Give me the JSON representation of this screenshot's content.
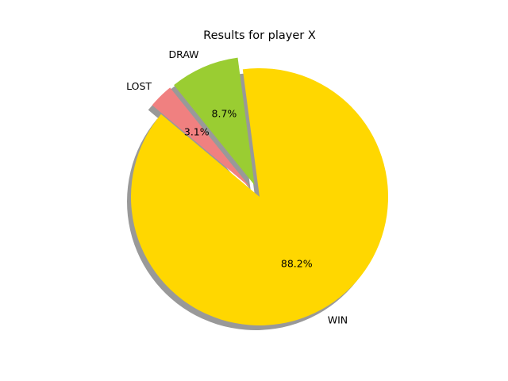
{
  "chart_data": {
    "type": "pie",
    "title": "Results for player X",
    "slices": [
      {
        "label": "WIN",
        "value": 88.2,
        "pct_text": "88.2%",
        "color": "#ffd700",
        "exploded": false
      },
      {
        "label": "DRAW",
        "value": 8.7,
        "pct_text": "8.7%",
        "color": "#9acd32",
        "exploded": true
      },
      {
        "label": "LOST",
        "value": 3.1,
        "pct_text": "3.1%",
        "color": "#f08080",
        "exploded": true
      }
    ],
    "shadow": true,
    "legend": "none"
  }
}
